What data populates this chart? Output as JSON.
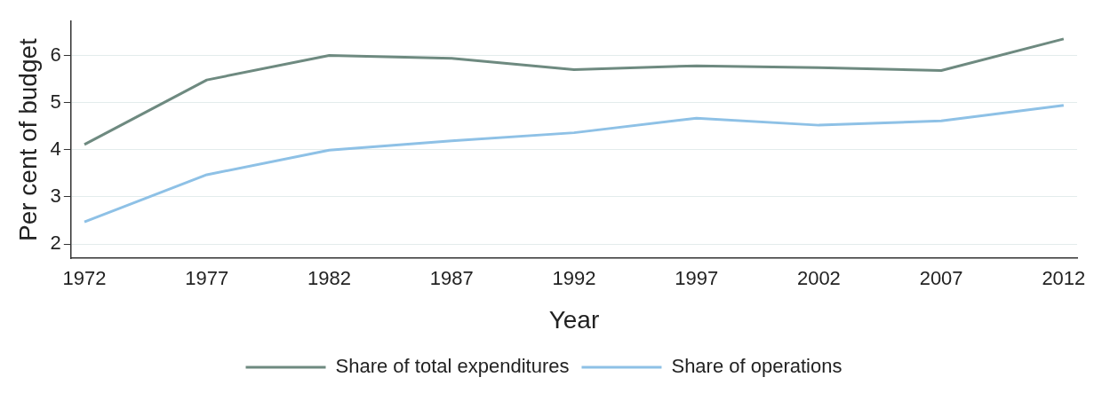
{
  "chart_data": {
    "type": "line",
    "xlabel": "Year",
    "ylabel": "Per cent of budget",
    "x": [
      1972,
      1977,
      1982,
      1987,
      1992,
      1997,
      2002,
      2007,
      2012
    ],
    "series": [
      {
        "name": "Share of total expenditures",
        "color": "#6e8a80",
        "values": [
          4.11,
          5.48,
          6.0,
          5.94,
          5.7,
          5.78,
          5.74,
          5.68,
          6.35
        ]
      },
      {
        "name": "Share of operations",
        "color": "#8ec1e6",
        "values": [
          2.47,
          3.47,
          3.99,
          4.19,
          4.36,
          4.67,
          4.52,
          4.61,
          4.94
        ]
      }
    ],
    "xlim": [
      1971.45,
      2012.55
    ],
    "xticks": [
      1972,
      1977,
      1982,
      1987,
      1992,
      1997,
      2002,
      2007,
      2012
    ],
    "ylim": [
      1.7,
      6.72
    ],
    "yticks": [
      2,
      3,
      4,
      5,
      6
    ],
    "grid": "y",
    "legend": "bottom",
    "marker": "none",
    "line_style": "solid"
  }
}
